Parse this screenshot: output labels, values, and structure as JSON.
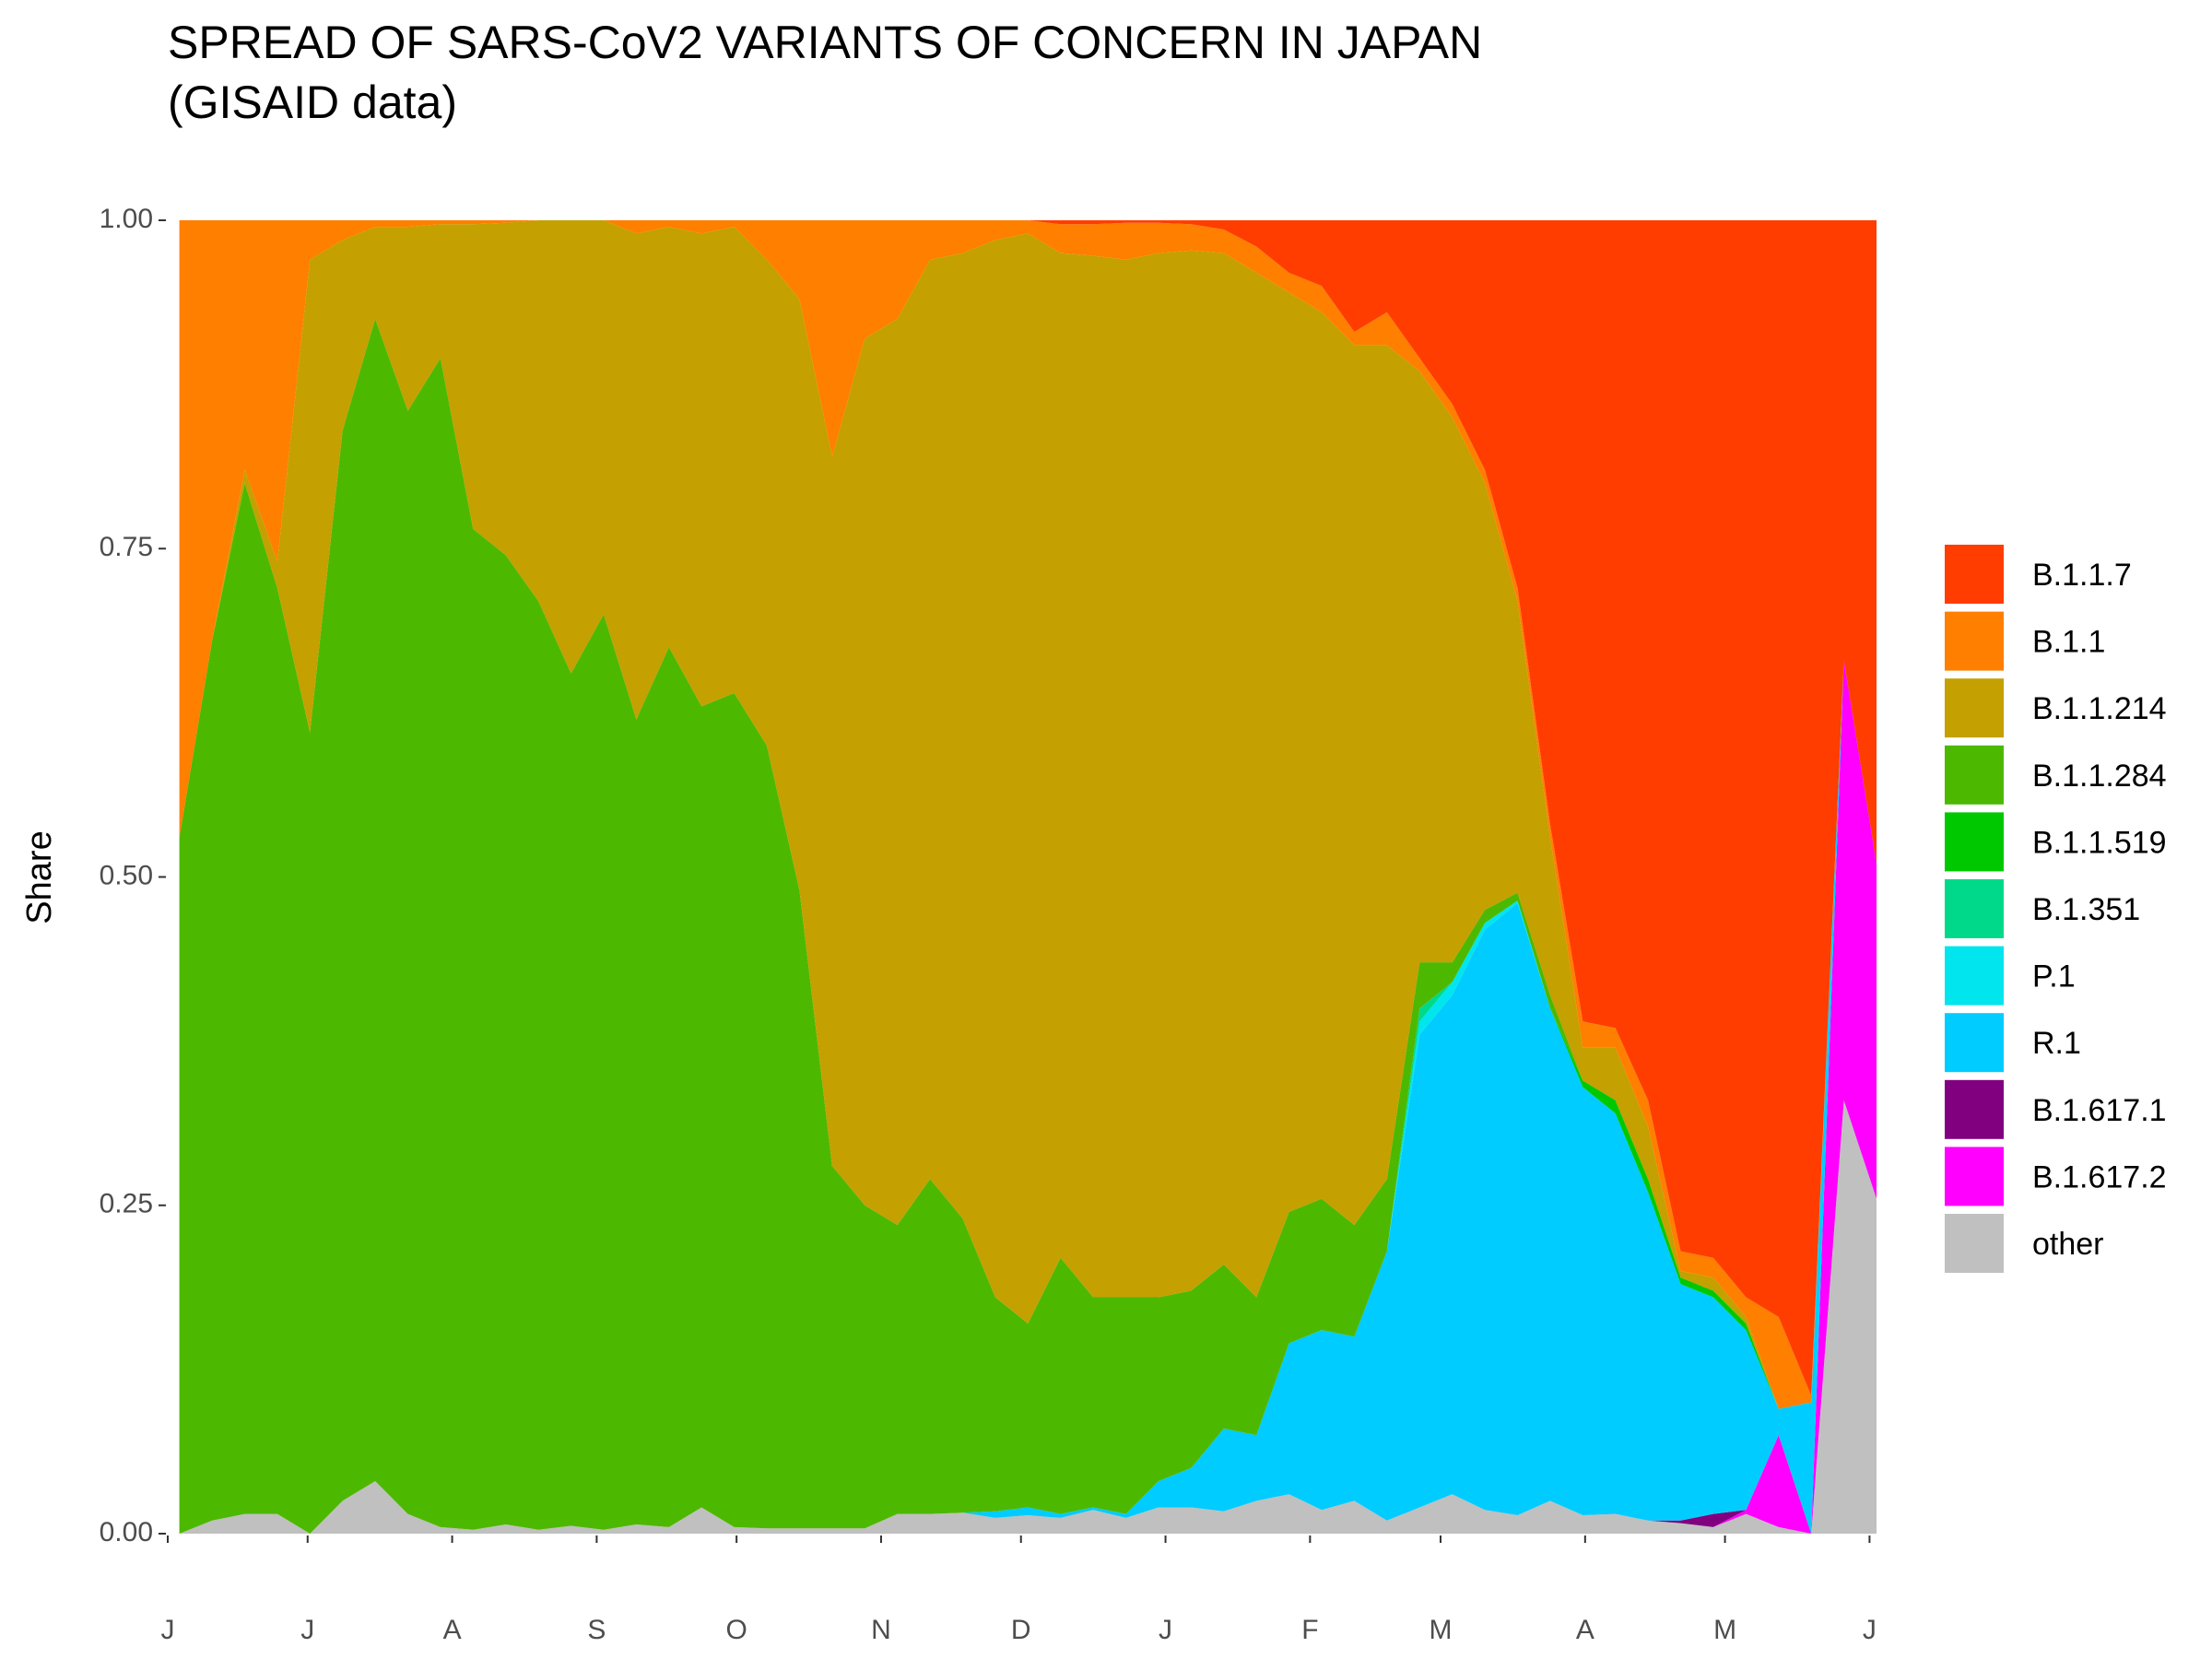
{
  "chart_data": {
    "type": "stacked-area",
    "title": [
      "SPREAD OF SARS-CoV2 VARIANTS OF CONCERN IN JAPAN",
      "(GISAID data)"
    ],
    "y_label": "Share",
    "x": [
      2.5,
      9.5,
      16.5,
      23.5,
      30.5,
      37.5,
      44.5,
      51.5,
      58.5,
      65.5,
      72.5,
      79.5,
      86.5,
      93.5,
      100.5,
      107.5,
      114.5,
      121.5,
      128.5,
      135.5,
      142.5,
      149.5,
      156.5,
      163.5,
      170.5,
      177.5,
      184.5,
      191.5,
      198.5,
      205.5,
      212.5,
      219.5,
      226.5,
      233.5,
      240.5,
      247.5,
      254.5,
      261.5,
      268.5,
      275.5,
      282.5,
      289.5,
      296.5,
      303.5,
      310.5,
      317.5,
      324.5,
      331.5,
      338.5,
      345.5,
      352.5,
      359.5,
      366.5
    ],
    "xlim": [
      0,
      366.5
    ],
    "xticks": [
      {
        "value": 0,
        "label": "J"
      },
      {
        "value": 30,
        "label": "J"
      },
      {
        "value": 61,
        "label": "A"
      },
      {
        "value": 92,
        "label": "S"
      },
      {
        "value": 122,
        "label": "O"
      },
      {
        "value": 153,
        "label": "N"
      },
      {
        "value": 183,
        "label": "D"
      },
      {
        "value": 214,
        "label": "J"
      },
      {
        "value": 245,
        "label": "F"
      },
      {
        "value": 273,
        "label": "M"
      },
      {
        "value": 304,
        "label": "A"
      },
      {
        "value": 334,
        "label": "M"
      },
      {
        "value": 365,
        "label": "J"
      }
    ],
    "ylim": [
      0,
      1
    ],
    "yticks": [
      {
        "value": 0,
        "label": "0.00"
      },
      {
        "value": 0.25,
        "label": "0.25"
      },
      {
        "value": 0.5,
        "label": "0.50"
      },
      {
        "value": 0.75,
        "label": "0.75"
      },
      {
        "value": 1,
        "label": "1.00"
      }
    ],
    "series": [
      {
        "name": "B.1.1.7",
        "color": "#ff3d00",
        "values": [
          0,
          0,
          0,
          0,
          0,
          0,
          0,
          0,
          0,
          0,
          0,
          0,
          0,
          0,
          0,
          0,
          0,
          0,
          0,
          0,
          0,
          0,
          0,
          0,
          0,
          0,
          0,
          0.003,
          0.003,
          0.002,
          0.002,
          0.003,
          0.007,
          0.02,
          0.04,
          0.05,
          0.085,
          0.07,
          0.105,
          0.14,
          0.19,
          0.28,
          0.46,
          0.61,
          0.615,
          0.67,
          0.785,
          0.79,
          0.82,
          0.835,
          0.895,
          0.335,
          0.49
        ]
      },
      {
        "name": "B.1.1",
        "color": "#ff7f00",
        "values": [
          0.47,
          0.32,
          0.19,
          0.26,
          0.03,
          0.015,
          0.005,
          0.005,
          0.003,
          0.003,
          0.002,
          0,
          0,
          0,
          0.01,
          0.005,
          0.01,
          0.005,
          0.03,
          0.06,
          0.18,
          0.09,
          0.075,
          0.03,
          0.025,
          0.015,
          0.01,
          0.022,
          0.024,
          0.028,
          0.023,
          0.02,
          0.018,
          0.02,
          0.015,
          0.02,
          0.01,
          0.025,
          0.01,
          0.01,
          0.01,
          0.01,
          0.01,
          0.02,
          0.015,
          0.02,
          0.015,
          0.015,
          0.015,
          0.07,
          0.005,
          0,
          0
        ]
      },
      {
        "name": "B.1.1.214",
        "color": "#c4a000",
        "values": [
          0,
          0,
          0.01,
          0.02,
          0.36,
          0.145,
          0.07,
          0.14,
          0.102,
          0.232,
          0.253,
          0.29,
          0.345,
          0.3,
          0.37,
          0.32,
          0.36,
          0.355,
          0.37,
          0.45,
          0.54,
          0.66,
          0.69,
          0.7,
          0.735,
          0.805,
          0.83,
          0.765,
          0.793,
          0.79,
          0.795,
          0.792,
          0.77,
          0.78,
          0.7,
          0.675,
          0.67,
          0.635,
          0.45,
          0.415,
          0.325,
          0.222,
          0.12,
          0.025,
          0.04,
          0.04,
          0.005,
          0.01,
          0.005,
          0,
          0,
          0,
          0
        ]
      },
      {
        "name": "B.1.1.284",
        "color": "#4db800",
        "values": [
          0.53,
          0.67,
          0.785,
          0.705,
          0.61,
          0.815,
          0.885,
          0.84,
          0.89,
          0.762,
          0.738,
          0.707,
          0.649,
          0.697,
          0.613,
          0.67,
          0.61,
          0.635,
          0.596,
          0.486,
          0.276,
          0.246,
          0.22,
          0.255,
          0.224,
          0.163,
          0.14,
          0.195,
          0.16,
          0.165,
          0.14,
          0.135,
          0.125,
          0.105,
          0.1,
          0.1,
          0.085,
          0.055,
          0.035,
          0.015,
          0.01,
          0.006,
          0.01,
          0,
          0,
          0,
          0,
          0,
          0,
          0,
          0,
          0,
          0
        ]
      },
      {
        "name": "B.1.1.519",
        "color": "#00c800",
        "values": [
          0,
          0,
          0,
          0,
          0,
          0,
          0,
          0,
          0,
          0,
          0,
          0,
          0,
          0,
          0,
          0,
          0,
          0,
          0,
          0,
          0,
          0,
          0,
          0,
          0,
          0,
          0,
          0,
          0,
          0,
          0,
          0,
          0,
          0,
          0,
          0,
          0,
          0,
          0,
          0,
          0,
          0,
          0,
          0.005,
          0.01,
          0.01,
          0.005,
          0.005,
          0.005,
          0,
          0,
          0,
          0
        ]
      },
      {
        "name": "B.1.351",
        "color": "#00d98a",
        "values": [
          0,
          0,
          0,
          0,
          0,
          0,
          0,
          0,
          0,
          0,
          0,
          0,
          0,
          0,
          0,
          0,
          0,
          0,
          0,
          0,
          0,
          0,
          0,
          0,
          0,
          0,
          0,
          0,
          0,
          0,
          0,
          0,
          0,
          0,
          0,
          0,
          0,
          0,
          0.01,
          0,
          0,
          0,
          0,
          0,
          0,
          0,
          0,
          0,
          0,
          0,
          0,
          0,
          0
        ]
      },
      {
        "name": "P.1",
        "color": "#00e5ee",
        "values": [
          0,
          0,
          0,
          0,
          0,
          0,
          0,
          0,
          0,
          0,
          0,
          0,
          0,
          0,
          0,
          0,
          0,
          0,
          0,
          0,
          0,
          0,
          0,
          0,
          0,
          0,
          0,
          0,
          0,
          0,
          0,
          0,
          0,
          0,
          0,
          0,
          0,
          0,
          0.01,
          0.01,
          0.005,
          0.002,
          0,
          0,
          0,
          0,
          0,
          0,
          0,
          0,
          0,
          0,
          0
        ]
      },
      {
        "name": "R.1",
        "color": "#00ccff",
        "values": [
          0,
          0,
          0,
          0,
          0,
          0,
          0,
          0,
          0,
          0,
          0,
          0,
          0,
          0,
          0,
          0,
          0,
          0,
          0,
          0,
          0,
          0,
          0,
          0,
          0,
          0.005,
          0.006,
          0.003,
          0.002,
          0.003,
          0.02,
          0.03,
          0.063,
          0.05,
          0.115,
          0.137,
          0.125,
          0.205,
          0.36,
          0.38,
          0.442,
          0.466,
          0.375,
          0.326,
          0.305,
          0.25,
          0.18,
          0.165,
          0.137,
          0.02,
          0.1,
          0,
          0
        ]
      },
      {
        "name": "B.1.617.1",
        "color": "#800080",
        "values": [
          0,
          0,
          0,
          0,
          0,
          0,
          0,
          0,
          0,
          0,
          0,
          0,
          0,
          0,
          0,
          0,
          0,
          0,
          0,
          0,
          0,
          0,
          0,
          0,
          0,
          0,
          0,
          0,
          0,
          0,
          0,
          0,
          0,
          0,
          0,
          0,
          0,
          0,
          0,
          0,
          0,
          0,
          0,
          0,
          0,
          0,
          0.002,
          0.01,
          0,
          0,
          0,
          0,
          0
        ]
      },
      {
        "name": "B.1.617.2",
        "color": "#ff00ff",
        "values": [
          0,
          0,
          0,
          0,
          0,
          0,
          0,
          0,
          0,
          0,
          0,
          0,
          0,
          0,
          0,
          0,
          0,
          0,
          0,
          0,
          0,
          0,
          0,
          0,
          0,
          0,
          0,
          0,
          0,
          0,
          0,
          0,
          0,
          0,
          0,
          0,
          0,
          0,
          0,
          0,
          0,
          0,
          0,
          0,
          0,
          0,
          0,
          0,
          0.003,
          0.07,
          0,
          0.335,
          0.255
        ]
      },
      {
        "name": "other",
        "color": "#c0c0c0",
        "values": [
          0,
          0.01,
          0.015,
          0.015,
          0,
          0.025,
          0.04,
          0.015,
          0.005,
          0.003,
          0.007,
          0.003,
          0.006,
          0.003,
          0.007,
          0.005,
          0.02,
          0.005,
          0.004,
          0.004,
          0.004,
          0.004,
          0.015,
          0.015,
          0.016,
          0.012,
          0.014,
          0.012,
          0.018,
          0.012,
          0.02,
          0.02,
          0.017,
          0.025,
          0.03,
          0.018,
          0.025,
          0.01,
          0.02,
          0.03,
          0.018,
          0.014,
          0.025,
          0.014,
          0.015,
          0.01,
          0.008,
          0.005,
          0.015,
          0.005,
          0,
          0.33,
          0.255
        ]
      }
    ]
  }
}
